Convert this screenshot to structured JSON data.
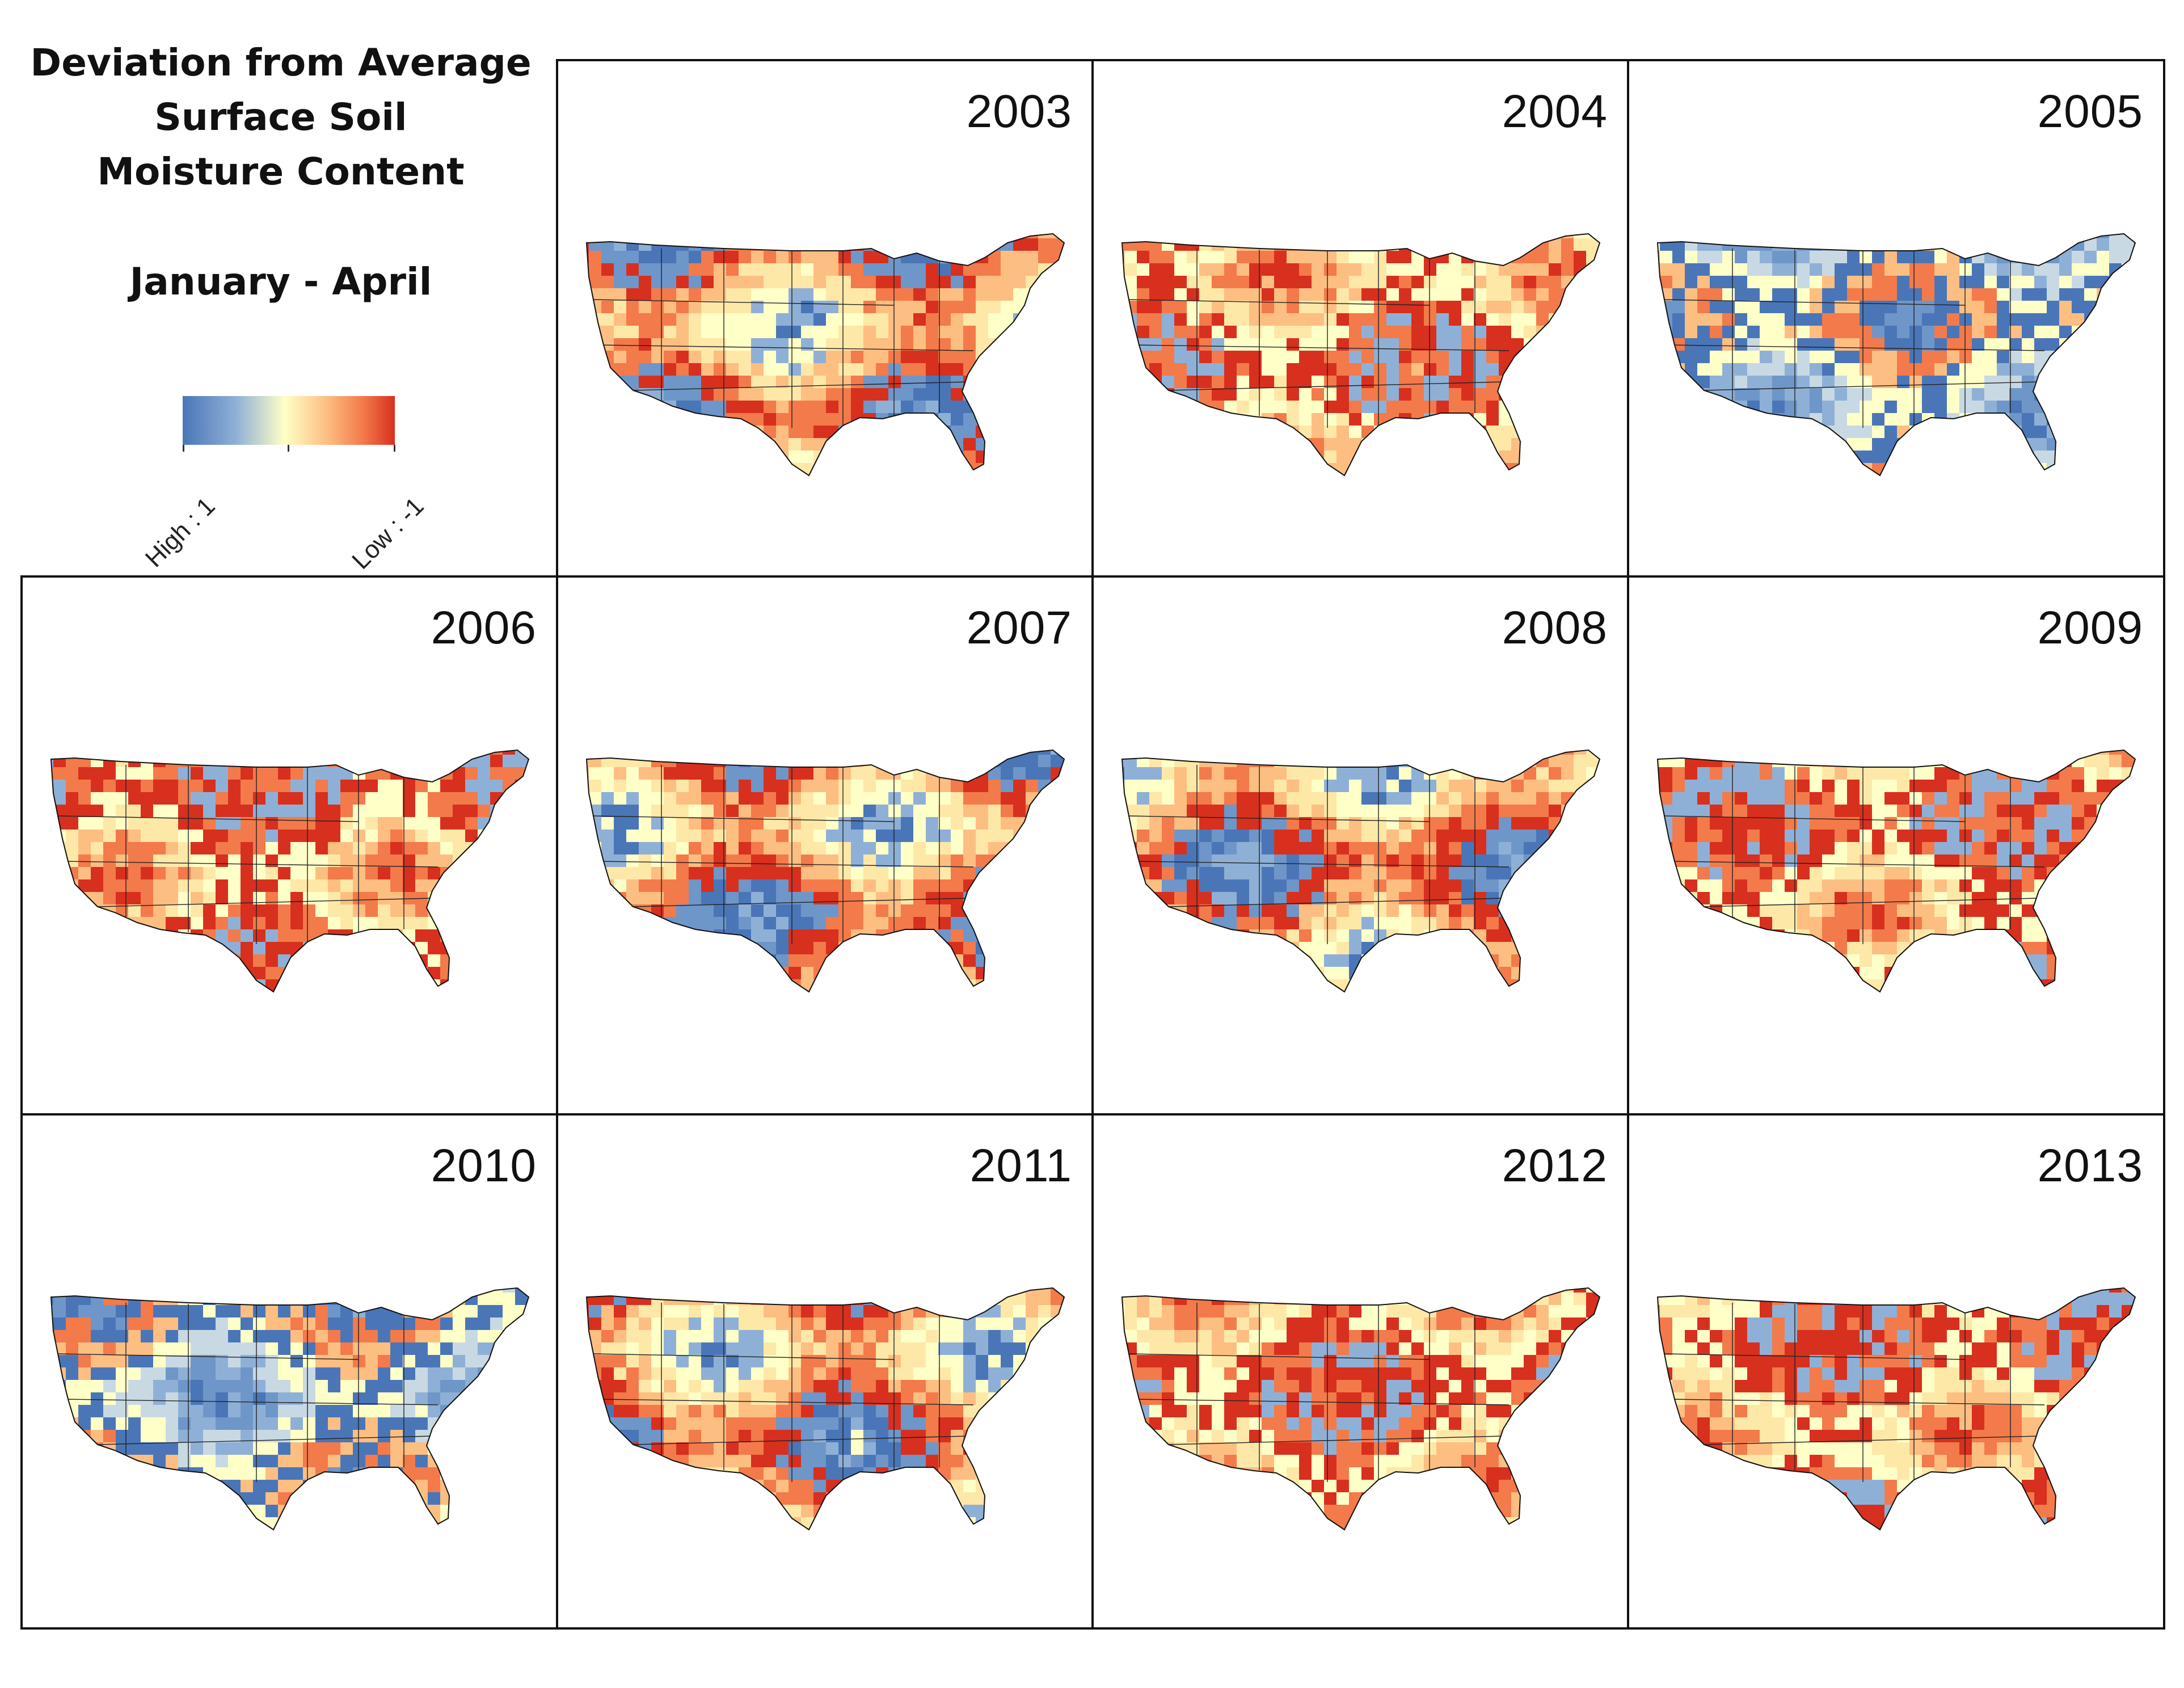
{
  "legend": {
    "title_line1": "Deviation from Average",
    "title_line2": "Surface Soil",
    "title_line3": "Moisture Content",
    "period": "January - April",
    "high_label": "High : 1",
    "low_label": "Low : -1",
    "color_high": "#4a76b8",
    "color_mid": "#ffffc8",
    "color_low": "#d7301f"
  },
  "panels": [
    {
      "year": "2003",
      "tone": "mixed"
    },
    {
      "year": "2004",
      "tone": "warm"
    },
    {
      "year": "2005",
      "tone": "cool"
    },
    {
      "year": "2006",
      "tone": "warm"
    },
    {
      "year": "2007",
      "tone": "mixed"
    },
    {
      "year": "2008",
      "tone": "mixed"
    },
    {
      "year": "2009",
      "tone": "warm"
    },
    {
      "year": "2010",
      "tone": "cool"
    },
    {
      "year": "2011",
      "tone": "mixed"
    },
    {
      "year": "2012",
      "tone": "warm"
    },
    {
      "year": "2013",
      "tone": "warm"
    }
  ]
}
